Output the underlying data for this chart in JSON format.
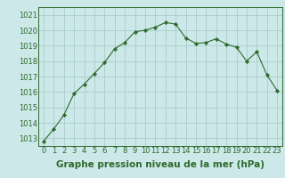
{
  "x": [
    0,
    1,
    2,
    3,
    4,
    5,
    6,
    7,
    8,
    9,
    10,
    11,
    12,
    13,
    14,
    15,
    16,
    17,
    18,
    19,
    20,
    21,
    22,
    23
  ],
  "y": [
    1012.8,
    1013.6,
    1014.5,
    1015.9,
    1016.5,
    1017.2,
    1017.9,
    1018.8,
    1019.2,
    1019.9,
    1020.0,
    1020.2,
    1020.5,
    1020.4,
    1019.5,
    1019.15,
    1019.2,
    1019.45,
    1019.1,
    1018.9,
    1018.0,
    1018.6,
    1017.1,
    1016.1
  ],
  "line_color": "#2d6a2d",
  "marker_color": "#2d6a2d",
  "bg_color": "#cce8e8",
  "grid_color": "#aacccc",
  "xlabel": "Graphe pression niveau de la mer (hPa)",
  "ylim_min": 1012.5,
  "ylim_max": 1021.5,
  "ytick_min": 1013,
  "ytick_max": 1021,
  "ytick_step": 1,
  "title_fontsize": 7.0,
  "tick_fontsize": 6.0,
  "xlabel_fontsize": 7.5
}
